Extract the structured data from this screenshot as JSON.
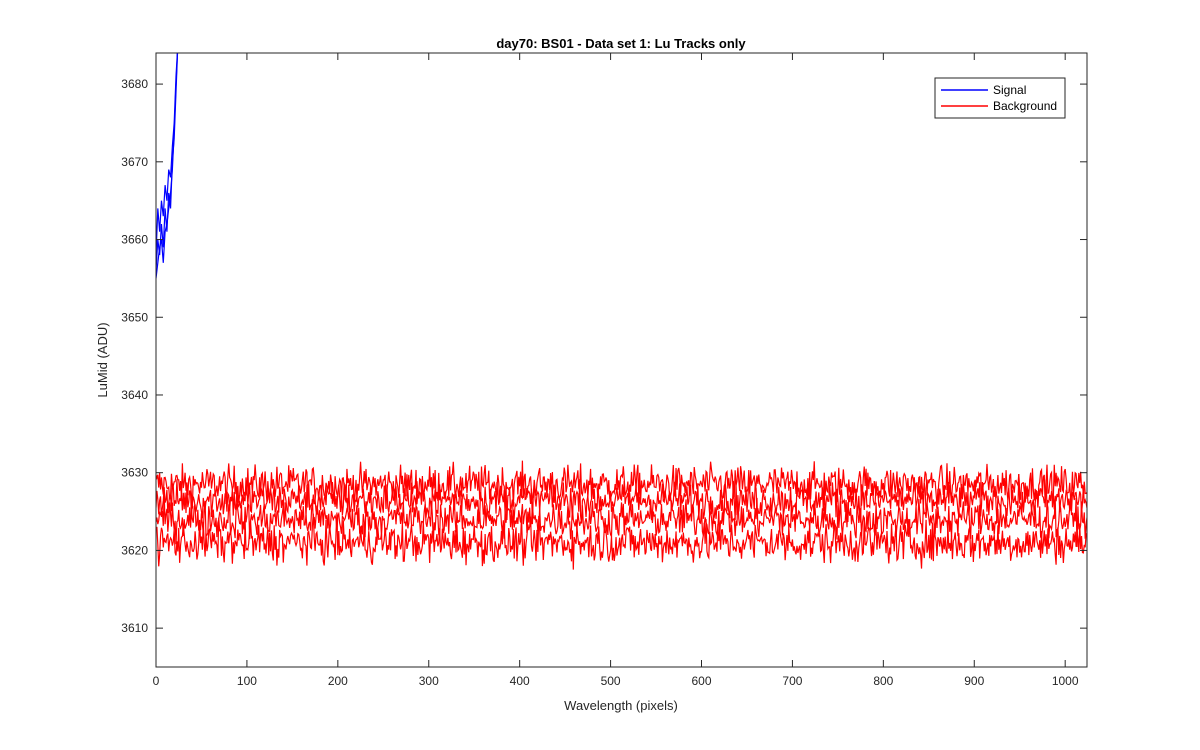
{
  "chart_data": {
    "type": "line",
    "title": "day70: BS01 - Data set 1: Lu Tracks only",
    "xlabel": "Wavelength (pixels)",
    "ylabel": "LuMid (ADU)",
    "xlim": [
      0,
      1024
    ],
    "ylim": [
      3605,
      3684
    ],
    "xticks": [
      0,
      100,
      200,
      300,
      400,
      500,
      600,
      700,
      800,
      900,
      1000
    ],
    "yticks": [
      3610,
      3620,
      3630,
      3640,
      3650,
      3660,
      3670,
      3680
    ],
    "grid": false,
    "legend": {
      "position": "top-right",
      "entries": [
        {
          "label": "Signal",
          "color": "#0000ff"
        },
        {
          "label": "Background",
          "color": "#ff0000"
        }
      ]
    },
    "series": [
      {
        "name": "Signal",
        "color": "#0000ff",
        "traces": [
          {
            "x": [
              0,
              2,
              4,
              6,
              8,
              10,
              12,
              14,
              16,
              18,
              20,
              22,
              24
            ],
            "y": [
              3656,
              3660,
              3658,
              3662,
              3659,
              3664,
              3661,
              3666,
              3664,
              3670,
              3673,
              3679,
              3685
            ]
          },
          {
            "x": [
              0,
              2,
              4,
              6,
              8,
              10,
              12,
              14,
              16,
              18,
              20,
              22,
              24
            ],
            "y": [
              3658,
              3664,
              3661,
              3665,
              3663,
              3667,
              3665,
              3669,
              3668,
              3672,
              3675,
              3681,
              3685
            ]
          },
          {
            "x": [
              0,
              2,
              4,
              6,
              8,
              10,
              12,
              14,
              16,
              18,
              20,
              22,
              24
            ],
            "y": [
              3655,
              3657,
              3659,
              3660,
              3657,
              3661,
              3662,
              3664,
              3666,
              3669,
              3674,
              3680,
              3685
            ]
          }
        ]
      },
      {
        "name": "Background",
        "color": "#ff0000",
        "traces": [
          {
            "mean": 3628.5,
            "spread": 2.0
          },
          {
            "mean": 3626.5,
            "spread": 2.0
          },
          {
            "mean": 3624.0,
            "spread": 2.0
          },
          {
            "mean": 3621.0,
            "spread": 2.2
          }
        ]
      }
    ]
  }
}
